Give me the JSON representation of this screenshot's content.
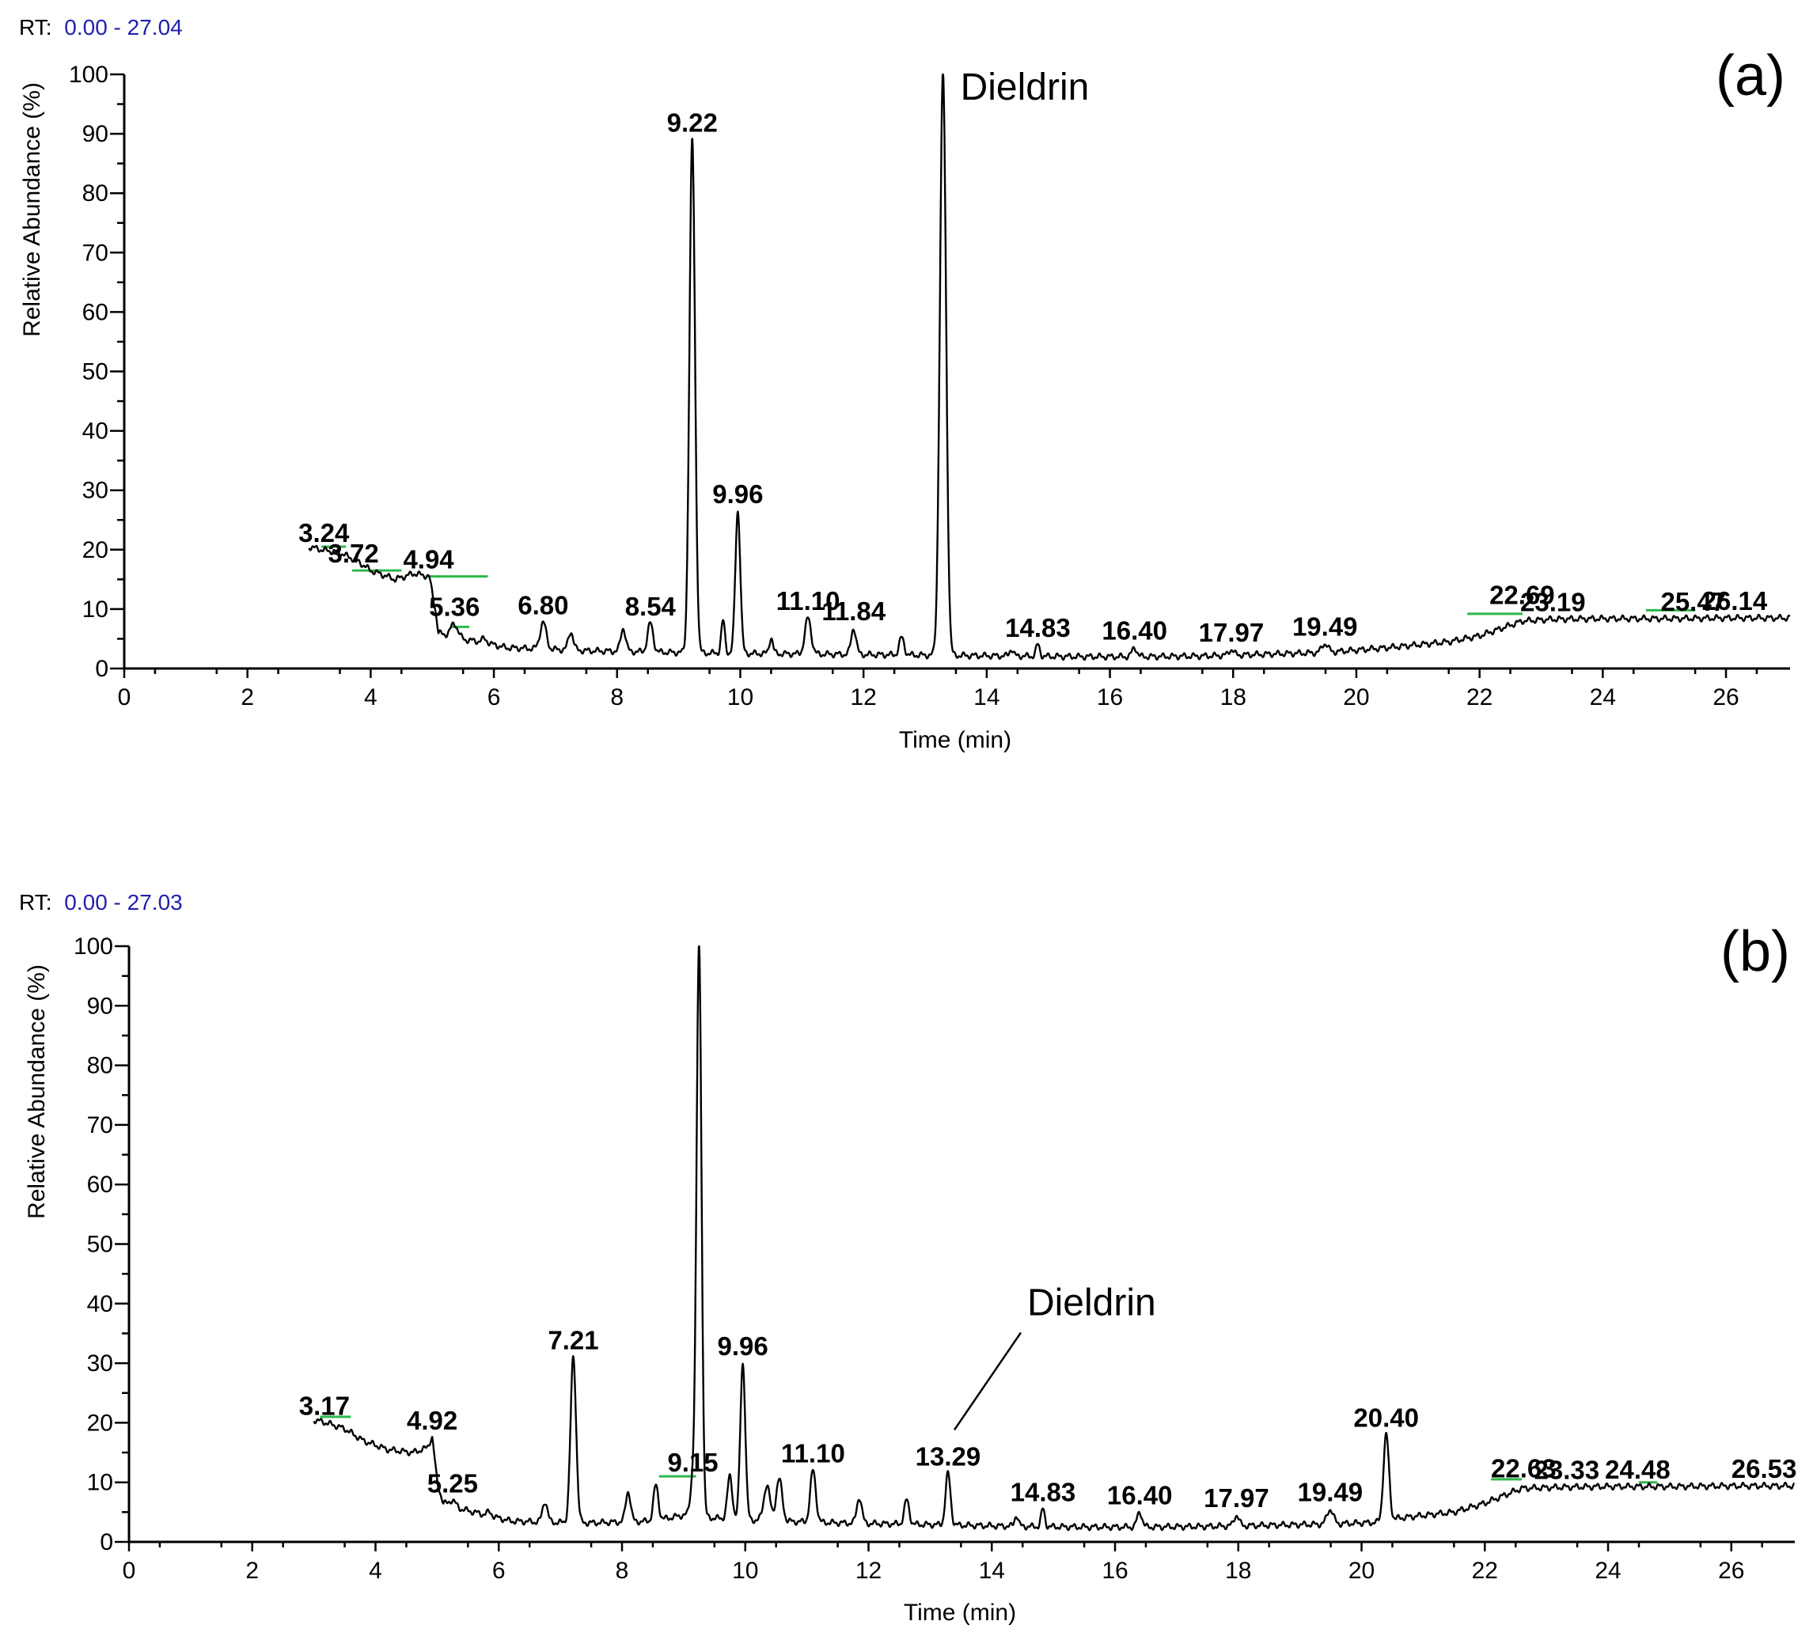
{
  "colors": {
    "trace": "#000000",
    "baseline_marker": "#2db84a",
    "rt_range": "#1f1fb0"
  },
  "chart_data": [
    {
      "type": "line",
      "panel": "(a)",
      "rt_prefix": "RT:",
      "rt_range": "0.00 - 27.04",
      "xlabel": "Time (min)",
      "ylabel": "Relative Abundance (%)",
      "xlim": [
        0,
        27.04
      ],
      "ylim": [
        0,
        100
      ],
      "x_ticks": [
        0,
        2,
        4,
        6,
        8,
        10,
        12,
        14,
        16,
        18,
        20,
        22,
        24,
        26
      ],
      "y_ticks": [
        0,
        10,
        20,
        30,
        40,
        50,
        60,
        70,
        80,
        90,
        100
      ],
      "baseline": [
        [
          3.0,
          20.5
        ],
        [
          3.2,
          20
        ],
        [
          3.5,
          19.5
        ],
        [
          3.8,
          18
        ],
        [
          4.0,
          16.5
        ],
        [
          4.4,
          15
        ],
        [
          4.7,
          16
        ],
        [
          4.95,
          15.5
        ],
        [
          5.05,
          10
        ],
        [
          5.1,
          6
        ],
        [
          5.4,
          5
        ],
        [
          5.8,
          4.5
        ],
        [
          6.2,
          3.5
        ],
        [
          6.8,
          3.3
        ],
        [
          7.5,
          3
        ],
        [
          8.5,
          2.8
        ],
        [
          9.5,
          2.6
        ],
        [
          10.5,
          2.5
        ],
        [
          11.5,
          2.4
        ],
        [
          12.5,
          2.3
        ],
        [
          13.5,
          2.2
        ],
        [
          14.5,
          2.1
        ],
        [
          15.5,
          2
        ],
        [
          16.5,
          2
        ],
        [
          17.5,
          2.1
        ],
        [
          18.5,
          2.4
        ],
        [
          19.5,
          2.7
        ],
        [
          20.5,
          3.5
        ],
        [
          21.5,
          4.5
        ],
        [
          22.0,
          5.5
        ],
        [
          22.7,
          8
        ],
        [
          23.2,
          8.3
        ],
        [
          24,
          8.4
        ],
        [
          25,
          8.4
        ],
        [
          26,
          8.5
        ],
        [
          27.04,
          8.5
        ]
      ],
      "peaks": [
        {
          "rt": 5.36,
          "height": 7.5,
          "width": 0.06
        },
        {
          "rt": 5.85,
          "height": 5.0,
          "width": 0.04
        },
        {
          "rt": 6.8,
          "height": 7.8,
          "width": 0.05
        },
        {
          "rt": 7.25,
          "height": 6.2,
          "width": 0.04
        },
        {
          "rt": 8.1,
          "height": 6.8,
          "width": 0.04
        },
        {
          "rt": 8.54,
          "height": 7.6,
          "width": 0.045
        },
        {
          "rt": 9.22,
          "height": 89,
          "width": 0.045
        },
        {
          "rt": 9.72,
          "height": 8.0,
          "width": 0.03
        },
        {
          "rt": 9.96,
          "height": 26.5,
          "width": 0.04
        },
        {
          "rt": 10.5,
          "height": 5.2,
          "width": 0.03
        },
        {
          "rt": 11.1,
          "height": 8.5,
          "width": 0.05
        },
        {
          "rt": 11.84,
          "height": 6.8,
          "width": 0.04
        },
        {
          "rt": 12.62,
          "height": 5.2,
          "width": 0.04
        },
        {
          "rt": 13.29,
          "height": 100,
          "width": 0.05
        },
        {
          "rt": 14.4,
          "height": 3.3,
          "width": 0.03
        },
        {
          "rt": 14.83,
          "height": 4.0,
          "width": 0.03
        },
        {
          "rt": 16.4,
          "height": 3.5,
          "width": 0.04
        },
        {
          "rt": 17.97,
          "height": 3.2,
          "width": 0.04
        },
        {
          "rt": 19.49,
          "height": 4.2,
          "width": 0.05
        }
      ],
      "peak_labels": [
        {
          "text": "3.24",
          "rt": 3.24,
          "y": 20
        },
        {
          "text": "3.72",
          "rt": 3.72,
          "y": 16.5
        },
        {
          "text": "4.94",
          "rt": 4.94,
          "y": 15.5
        },
        {
          "text": "5.36",
          "rt": 5.36,
          "y": 7.5
        },
        {
          "text": "6.80",
          "rt": 6.8,
          "y": 7.8
        },
        {
          "text": "8.54",
          "rt": 8.54,
          "y": 7.6
        },
        {
          "text": "9.22",
          "rt": 9.22,
          "y": 89
        },
        {
          "text": "9.96",
          "rt": 9.96,
          "y": 26.5
        },
        {
          "text": "11.10",
          "rt": 11.1,
          "y": 8.5
        },
        {
          "text": "11.84",
          "rt": 11.84,
          "y": 6.8
        },
        {
          "text": "14.83",
          "rt": 14.83,
          "y": 4.0
        },
        {
          "text": "16.40",
          "rt": 16.4,
          "y": 3.5
        },
        {
          "text": "17.97",
          "rt": 17.97,
          "y": 3.2
        },
        {
          "text": "19.49",
          "rt": 19.49,
          "y": 4.2
        },
        {
          "text": "22.69",
          "rt": 22.69,
          "y": 9.5
        },
        {
          "text": "23.19",
          "rt": 23.19,
          "y": 8.3
        },
        {
          "text": "25.47",
          "rt": 25.47,
          "y": 8.4
        },
        {
          "text": "26.14",
          "rt": 26.14,
          "y": 8.5
        }
      ],
      "baseline_markers": [
        [
          3.2,
          3.6,
          20.5
        ],
        [
          3.7,
          4.5,
          16.5
        ],
        [
          4.9,
          5.9,
          15.5
        ],
        [
          5.3,
          5.6,
          7.0
        ],
        [
          21.8,
          22.7,
          9.2
        ],
        [
          24.7,
          25.5,
          9.8
        ]
      ],
      "compound_annotation": {
        "text": "Dieldrin",
        "rt": 13.29,
        "y": 100,
        "leader": false
      }
    },
    {
      "type": "line",
      "panel": "(b)",
      "rt_prefix": "RT:",
      "rt_range": "0.00 - 27.03",
      "xlabel": "Time (min)",
      "ylabel": "Relative Abundance (%)",
      "xlim": [
        0,
        27.03
      ],
      "ylim": [
        0,
        100
      ],
      "x_ticks": [
        0,
        2,
        4,
        6,
        8,
        10,
        12,
        14,
        16,
        18,
        20,
        22,
        24,
        26
      ],
      "y_ticks": [
        0,
        10,
        20,
        30,
        40,
        50,
        60,
        70,
        80,
        90,
        100
      ],
      "baseline": [
        [
          3.0,
          20.5
        ],
        [
          3.2,
          20
        ],
        [
          3.5,
          19
        ],
        [
          3.8,
          17
        ],
        [
          4.2,
          15.5
        ],
        [
          4.6,
          15
        ],
        [
          4.92,
          16
        ],
        [
          5.0,
          10
        ],
        [
          5.1,
          6.5
        ],
        [
          5.4,
          5.5
        ],
        [
          5.8,
          4.5
        ],
        [
          6.2,
          3.5
        ],
        [
          6.8,
          3.3
        ],
        [
          7.5,
          3.2
        ],
        [
          8.5,
          3.5
        ],
        [
          9.0,
          4.5
        ],
        [
          9.5,
          4
        ],
        [
          10.5,
          3.5
        ],
        [
          11.5,
          3.2
        ],
        [
          12.5,
          3
        ],
        [
          13.5,
          2.8
        ],
        [
          14.5,
          2.6
        ],
        [
          15.5,
          2.5
        ],
        [
          16.5,
          2.5
        ],
        [
          17.5,
          2.6
        ],
        [
          18.5,
          2.8
        ],
        [
          19.5,
          3
        ],
        [
          20.3,
          3.3
        ],
        [
          20.6,
          4
        ],
        [
          21.5,
          5
        ],
        [
          22.0,
          6.5
        ],
        [
          22.6,
          9
        ],
        [
          23.3,
          9.2
        ],
        [
          24,
          9.3
        ],
        [
          25,
          9.3
        ],
        [
          26,
          9.4
        ],
        [
          27.03,
          9.4
        ]
      ],
      "peaks": [
        {
          "rt": 4.92,
          "height": 17.5,
          "width": 0.04
        },
        {
          "rt": 5.25,
          "height": 7.0,
          "width": 0.05
        },
        {
          "rt": 5.85,
          "height": 5.0,
          "width": 0.04
        },
        {
          "rt": 6.75,
          "height": 6.8,
          "width": 0.04
        },
        {
          "rt": 7.21,
          "height": 31,
          "width": 0.045
        },
        {
          "rt": 8.1,
          "height": 8.5,
          "width": 0.04
        },
        {
          "rt": 8.55,
          "height": 9.5,
          "width": 0.04
        },
        {
          "rt": 9.15,
          "height": 10.5,
          "width": 0.04
        },
        {
          "rt": 9.25,
          "height": 100,
          "width": 0.04
        },
        {
          "rt": 9.75,
          "height": 11,
          "width": 0.04
        },
        {
          "rt": 9.96,
          "height": 30,
          "width": 0.04
        },
        {
          "rt": 10.35,
          "height": 9.5,
          "width": 0.05
        },
        {
          "rt": 10.55,
          "height": 10.5,
          "width": 0.05
        },
        {
          "rt": 11.1,
          "height": 12,
          "width": 0.045
        },
        {
          "rt": 11.85,
          "height": 7.5,
          "width": 0.04
        },
        {
          "rt": 12.62,
          "height": 7.0,
          "width": 0.04
        },
        {
          "rt": 13.29,
          "height": 11.5,
          "width": 0.04
        },
        {
          "rt": 14.4,
          "height": 4.5,
          "width": 0.03
        },
        {
          "rt": 14.83,
          "height": 5.5,
          "width": 0.03
        },
        {
          "rt": 16.4,
          "height": 5.0,
          "width": 0.04
        },
        {
          "rt": 17.97,
          "height": 4.5,
          "width": 0.04
        },
        {
          "rt": 19.49,
          "height": 5.5,
          "width": 0.05
        },
        {
          "rt": 20.4,
          "height": 18,
          "width": 0.045
        }
      ],
      "peak_labels": [
        {
          "text": "3.17",
          "rt": 3.17,
          "y": 20
        },
        {
          "text": "4.92",
          "rt": 4.92,
          "y": 17.5
        },
        {
          "text": "5.25",
          "rt": 5.25,
          "y": 7.0
        },
        {
          "text": "7.21",
          "rt": 7.21,
          "y": 31
        },
        {
          "text": "9.15",
          "rt": 9.15,
          "y": 10.5
        },
        {
          "text": "9.96",
          "rt": 9.96,
          "y": 30
        },
        {
          "text": "11.10",
          "rt": 11.1,
          "y": 12
        },
        {
          "text": "13.29",
          "rt": 13.29,
          "y": 11.5
        },
        {
          "text": "14.83",
          "rt": 14.83,
          "y": 5.5
        },
        {
          "text": "16.40",
          "rt": 16.4,
          "y": 5.0
        },
        {
          "text": "17.97",
          "rt": 17.97,
          "y": 4.5
        },
        {
          "text": "19.49",
          "rt": 19.49,
          "y": 5.5
        },
        {
          "text": "20.40",
          "rt": 20.4,
          "y": 18
        },
        {
          "text": "22.63",
          "rt": 22.63,
          "y": 9.5
        },
        {
          "text": "23.33",
          "rt": 23.33,
          "y": 9.2
        },
        {
          "text": "24.48",
          "rt": 24.48,
          "y": 9.3
        },
        {
          "text": "26.53",
          "rt": 26.53,
          "y": 9.4
        }
      ],
      "baseline_markers": [
        [
          3.1,
          3.6,
          21
        ],
        [
          8.6,
          9.2,
          11
        ],
        [
          22.1,
          22.6,
          10.5
        ],
        [
          24.5,
          24.8,
          10
        ]
      ],
      "compound_annotation": {
        "text": "Dieldrin",
        "rt": 13.29,
        "y": 11.5,
        "leader": true
      }
    }
  ]
}
